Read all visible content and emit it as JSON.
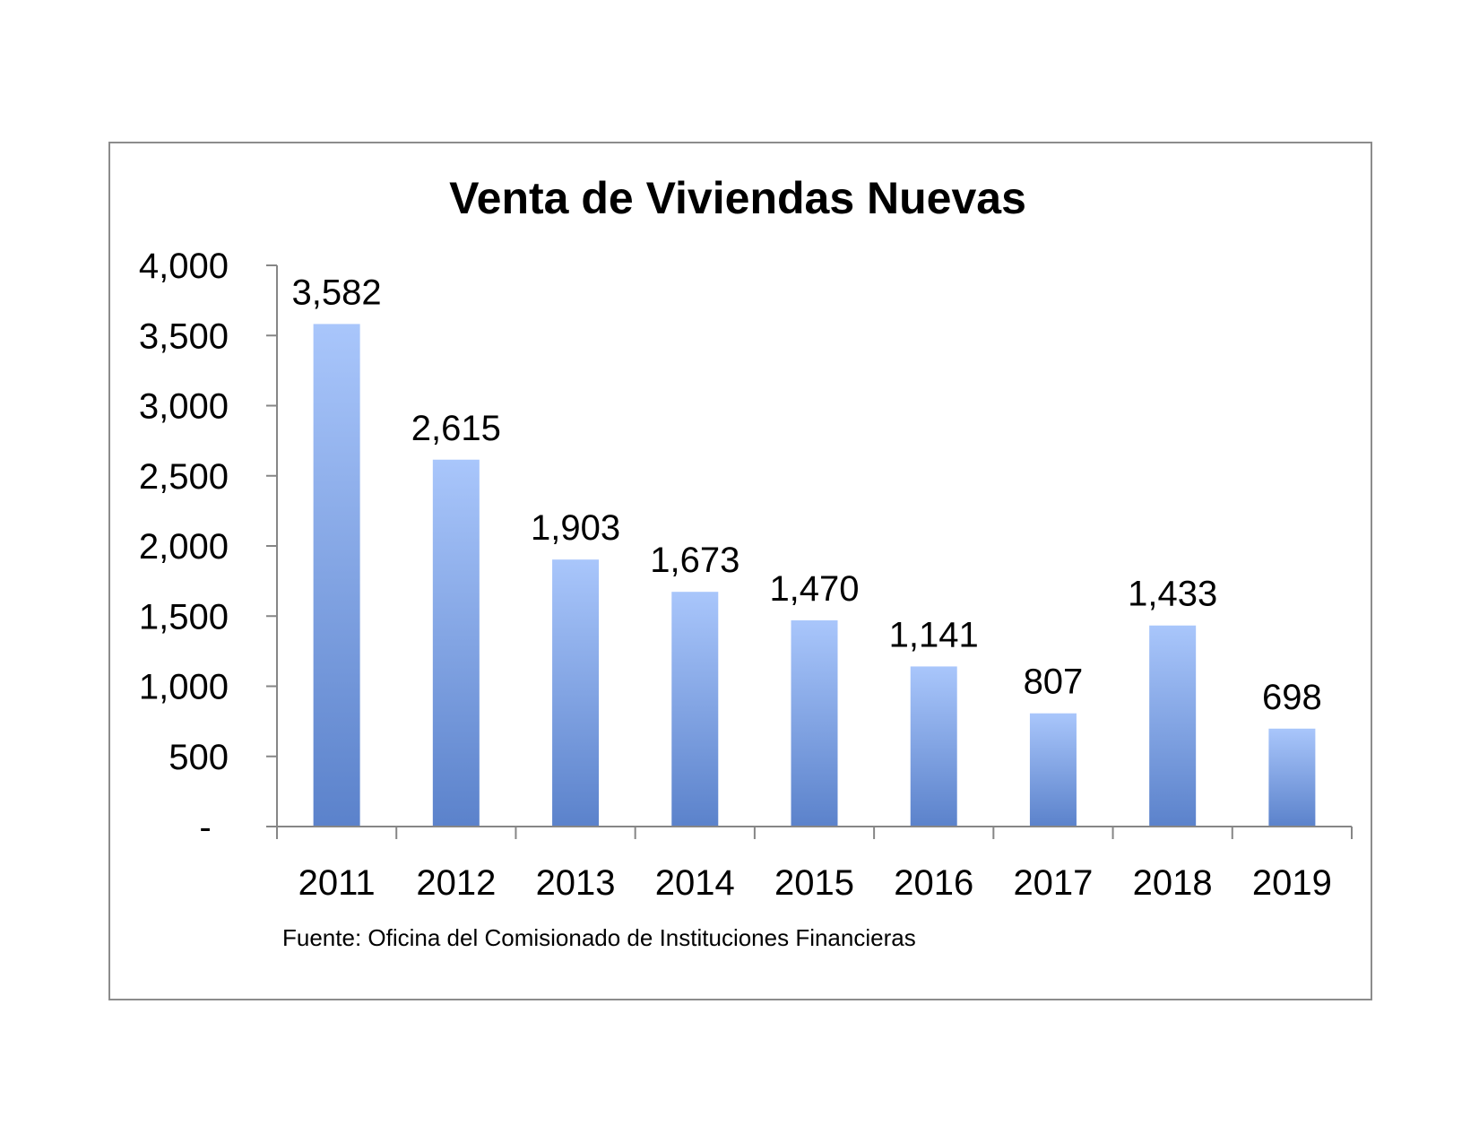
{
  "chart_data": {
    "type": "bar",
    "title": "Venta de Viviendas Nuevas",
    "categories": [
      "2011",
      "2012",
      "2013",
      "2014",
      "2015",
      "2016",
      "2017",
      "2018",
      "2019"
    ],
    "values": [
      3582,
      2615,
      1903,
      1673,
      1470,
      1141,
      807,
      1433,
      698
    ],
    "data_labels": [
      "3,582",
      "2,615",
      "1,903",
      "1,673",
      "1,470",
      "1,141",
      "807",
      "1,433",
      "698"
    ],
    "ylim": [
      0,
      4000
    ],
    "yticks": [
      0,
      500,
      1000,
      1500,
      2000,
      2500,
      3000,
      3500,
      4000
    ],
    "ytick_labels": [
      "-",
      "500",
      "1,000",
      "1,500",
      "2,000",
      "2,500",
      "3,000",
      "3,500",
      "4,000"
    ],
    "xlabel": "",
    "ylabel": "",
    "grid": false,
    "legend": "none",
    "source": "Fuente:  Oficina del Comisionado de Instituciones  Financieras",
    "colors": {
      "bar_top": "#a9c6fb",
      "bar_bottom": "#5b82cb",
      "axis": "#868686",
      "frame": "#8c8c8c"
    }
  }
}
